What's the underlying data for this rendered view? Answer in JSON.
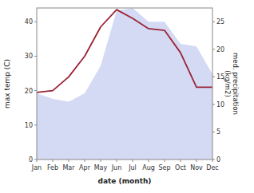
{
  "chart_data": {
    "type": "line",
    "categories": [
      "Jan",
      "Feb",
      "Mar",
      "Apr",
      "May",
      "Jun",
      "Jul",
      "Aug",
      "Sep",
      "Oct",
      "Nov",
      "Dec"
    ],
    "xlabel": "date (month)",
    "ylabel": "max temp (C)",
    "y2label": "med. precipitation\n(kg/m2)",
    "ylim": [
      0,
      44
    ],
    "yticks": [
      0,
      10,
      20,
      30,
      40
    ],
    "y2lim": [
      0,
      27.5
    ],
    "y2ticks": [
      0,
      5,
      10,
      15,
      20,
      25
    ],
    "grid": false,
    "series": [
      {
        "type": "area",
        "axis": "y2",
        "color": "#c5cef0",
        "values": [
          12.0,
          11.0,
          10.5,
          12.0,
          17.0,
          27.0,
          27.5,
          25.0,
          25.0,
          21.0,
          20.5,
          15.5
        ]
      },
      {
        "type": "line",
        "color": "#9b2335",
        "values": [
          19.5,
          20.0,
          24.0,
          30.0,
          38.5,
          43.5,
          41.0,
          38.0,
          37.5,
          31.0,
          21.0,
          21.0
        ]
      }
    ]
  }
}
